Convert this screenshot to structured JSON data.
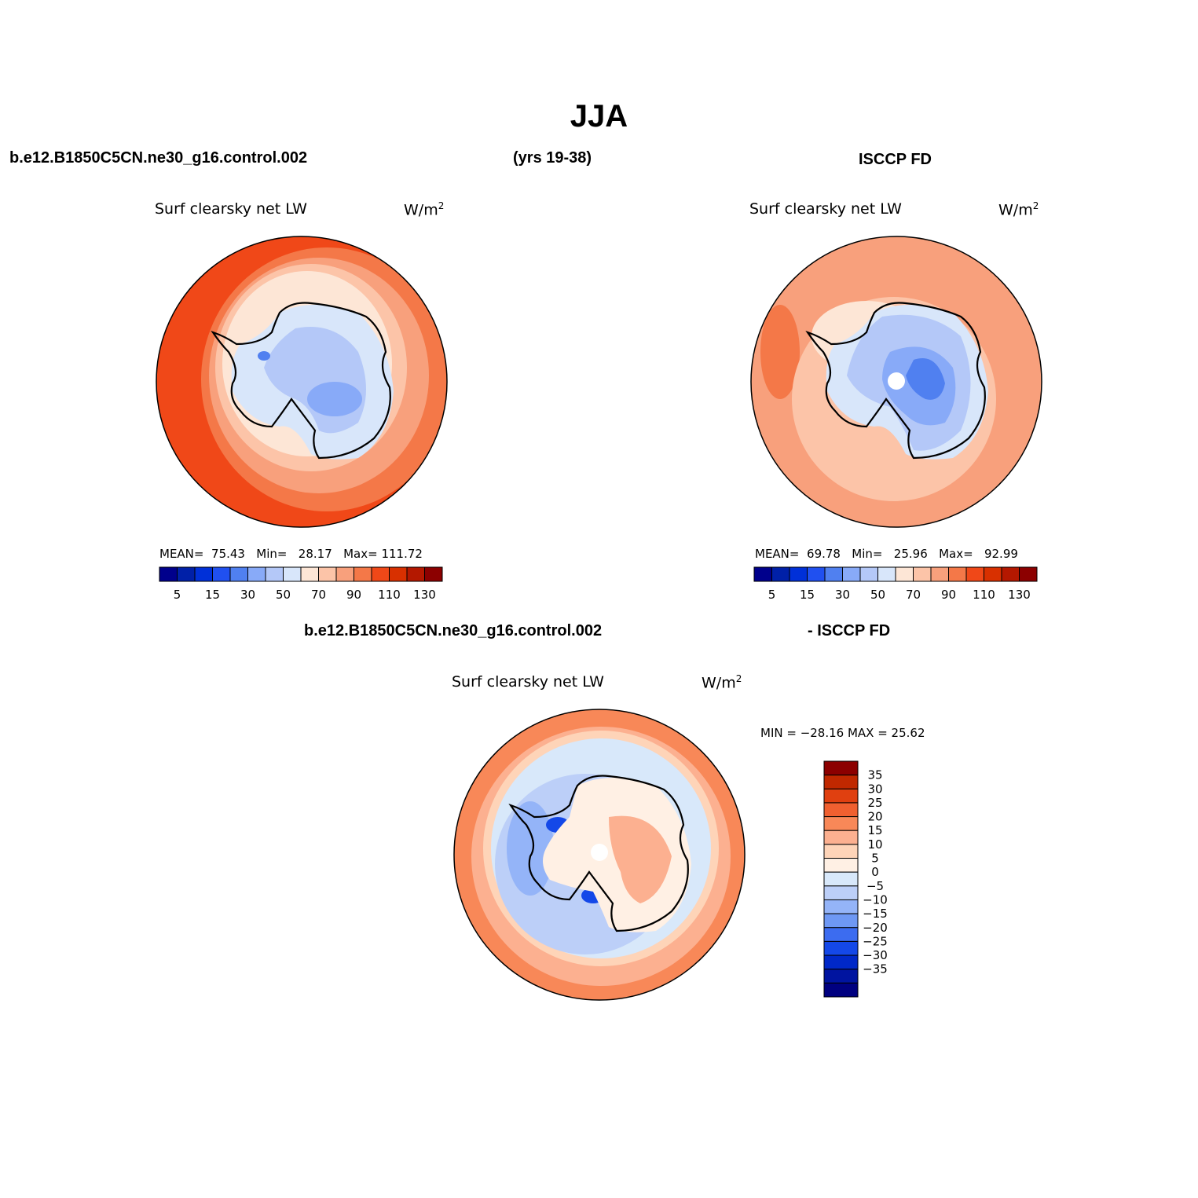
{
  "page": {
    "title": "JJA",
    "case_name": "b.e12.B1850C5CN.ne30_g16.control.002",
    "years": "(yrs 19-38)",
    "obs_name": "ISCCP FD",
    "diff_case_name": "b.e12.B1850C5CN.ne30_g16.control.002",
    "diff_obs_name": "- ISCCP FD"
  },
  "panels": [
    {
      "id": "model",
      "variable": "Surf clearsky net LW",
      "units_base": "W/m",
      "units_sup": "2",
      "mean_label": "MEAN=",
      "mean": "75.43",
      "min_label": "Min=",
      "min": "28.17",
      "max_label": "Max=",
      "max": "111.72"
    },
    {
      "id": "obs",
      "variable": "Surf clearsky net LW",
      "units_base": "W/m",
      "units_sup": "2",
      "mean_label": "MEAN=",
      "mean": "69.78",
      "min_label": "Min=",
      "min": "25.96",
      "max_label": "Max=",
      "max": "92.99"
    },
    {
      "id": "diff",
      "variable": "Surf clearsky net LW",
      "units_base": "W/m",
      "units_sup": "2",
      "minmax_text": "MIN = −28.16 MAX =   25.62"
    }
  ],
  "colorbar_abs": {
    "colors": [
      "#00008c",
      "#0020a8",
      "#0030d8",
      "#2050f0",
      "#5080f0",
      "#88aaf8",
      "#b4c8f8",
      "#d8e6fa",
      "#fde6d6",
      "#fcc4a8",
      "#f8a07c",
      "#f47848",
      "#f04818",
      "#d83000",
      "#b41800",
      "#8c0000"
    ],
    "tick_labels": [
      "5",
      "15",
      "30",
      "50",
      "70",
      "90",
      "110",
      "130"
    ]
  },
  "colorbar_diff": {
    "colors": [
      "#8c0000",
      "#c02800",
      "#e04010",
      "#f06030",
      "#f88858",
      "#fcb090",
      "#fed4b8",
      "#fff0e4",
      "#d8e8fa",
      "#bccff8",
      "#94b4f8",
      "#6e98f4",
      "#3c6cf0",
      "#1448e8",
      "#0028c8",
      "#0014a0",
      "#000080"
    ],
    "tick_labels": [
      "35",
      "30",
      "25",
      "20",
      "15",
      "10",
      "5",
      "0",
      "−5",
      "−10",
      "−15",
      "−20",
      "−25",
      "−30",
      "−35"
    ]
  }
}
